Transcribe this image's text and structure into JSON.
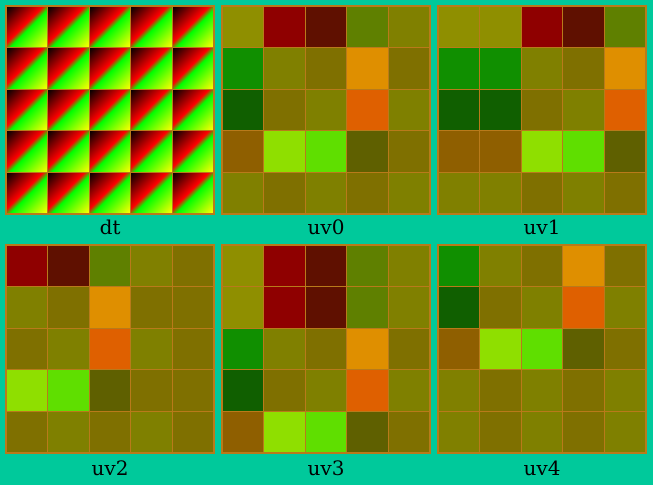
{
  "panels": [
    {
      "label": "dt",
      "cells": []
    },
    {
      "label": "uv0",
      "cells": [
        "#8f8f00",
        "#8f0000",
        "#5f1000",
        "#5f8000",
        "#808000",
        "#108f00",
        "#808000",
        "#7f7000",
        "#df8f00",
        "#7f7000",
        "#105f00",
        "#7f7000",
        "#7f8000",
        "#df6000",
        "#7f8000",
        "#8f5f00",
        "#8fdf00",
        "#5fdf00",
        "#5f6000",
        "#7f7000",
        "#808000",
        "#7f7000",
        "#7f8000",
        "#7f7000",
        "#7f8000"
      ]
    },
    {
      "label": "uv1",
      "cells": [
        "#8f8f00",
        "#8f8f00",
        "#8f0000",
        "#5f1000",
        "#5f8000",
        "#108f00",
        "#108f00",
        "#808000",
        "#7f7000",
        "#df8f00",
        "#105f00",
        "#105f00",
        "#7f7000",
        "#7f8000",
        "#df6000",
        "#8f5f00",
        "#8f5f00",
        "#8fdf00",
        "#5fdf00",
        "#5f6000",
        "#808000",
        "#808000",
        "#7f7000",
        "#7f8000",
        "#7f7000"
      ]
    },
    {
      "label": "uv2",
      "cells": [
        "#8f0000",
        "#5f1000",
        "#5f8000",
        "#808000",
        "#7f7000",
        "#808000",
        "#7f7000",
        "#df8f00",
        "#7f7000",
        "#7f7000",
        "#7f7000",
        "#7f8000",
        "#df6000",
        "#7f8000",
        "#7f7000",
        "#8fdf00",
        "#5fdf00",
        "#5f6000",
        "#7f7000",
        "#7f7000",
        "#7f7000",
        "#7f8000",
        "#7f7000",
        "#7f8000",
        "#7f7000"
      ]
    },
    {
      "label": "uv3",
      "cells": [
        "#8f8f00",
        "#8f0000",
        "#5f1000",
        "#5f8000",
        "#808000",
        "#8f8f00",
        "#8f0000",
        "#5f1000",
        "#5f8000",
        "#808000",
        "#108f00",
        "#808000",
        "#7f7000",
        "#df8f00",
        "#7f7000",
        "#105f00",
        "#7f7000",
        "#7f8000",
        "#df6000",
        "#7f8000",
        "#8f5f00",
        "#8fdf00",
        "#5fdf00",
        "#5f6000",
        "#7f7000"
      ]
    },
    {
      "label": "uv4",
      "cells": [
        "#108f00",
        "#808000",
        "#7f7000",
        "#df8f00",
        "#7f7000",
        "#105f00",
        "#7f7000",
        "#7f8000",
        "#df6000",
        "#7f8000",
        "#8f5f00",
        "#8fdf00",
        "#5fdf00",
        "#5f6000",
        "#7f7000",
        "#808000",
        "#7f7000",
        "#7f8000",
        "#7f7000",
        "#7f8000",
        "#808000",
        "#7f7000",
        "#7f8000",
        "#7f7000",
        "#7f8000"
      ]
    }
  ]
}
